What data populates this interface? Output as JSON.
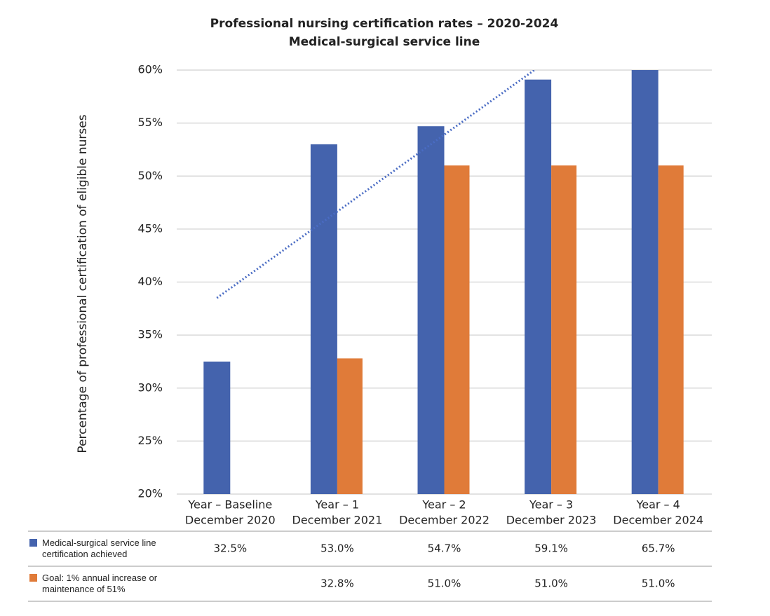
{
  "chart_data": {
    "type": "bar",
    "title": "Professional nursing certification rates – 2020-2024",
    "subtitle": "Medical-surgical service line",
    "y_label": "Percentage of professional certification of eligible nurses",
    "categories": [
      [
        "Year – Baseline",
        "December 2020"
      ],
      [
        "Year – 1",
        "December 2021"
      ],
      [
        "Year – 2",
        "December 2022"
      ],
      [
        "Year – 3",
        "December 2023"
      ],
      [
        "Year – 4",
        "December 2024"
      ]
    ],
    "series": [
      {
        "name": "Medical-surgical service line certification achieved",
        "color": "#4463ad",
        "values": [
          32.5,
          53.0,
          54.7,
          59.1,
          65.7
        ],
        "value_labels": [
          "32.5%",
          "53.0%",
          "54.7%",
          "59.1%",
          "65.7%"
        ]
      },
      {
        "name": "Goal: 1% annual increase or maintenance of 51%",
        "color": "#e07b39",
        "values": [
          null,
          32.8,
          51.0,
          51.0,
          51.0
        ],
        "value_labels": [
          null,
          "32.8%",
          "51.0%",
          "51.0%",
          "51.0%"
        ]
      }
    ],
    "trendline": {
      "series": 0,
      "type": "linear",
      "color": "#4a6cc4"
    },
    "ylim": [
      20,
      60
    ],
    "yticks": [
      {
        "value": 20,
        "label": "20%"
      },
      {
        "value": 25,
        "label": "25%"
      },
      {
        "value": 30,
        "label": "30%"
      },
      {
        "value": 35,
        "label": "35%"
      },
      {
        "value": 40,
        "label": "40%"
      },
      {
        "value": 45,
        "label": "45%"
      },
      {
        "value": 50,
        "label": "50%"
      },
      {
        "value": 55,
        "label": "55%"
      },
      {
        "value": 60,
        "label": "60%"
      }
    ],
    "grid": true
  }
}
